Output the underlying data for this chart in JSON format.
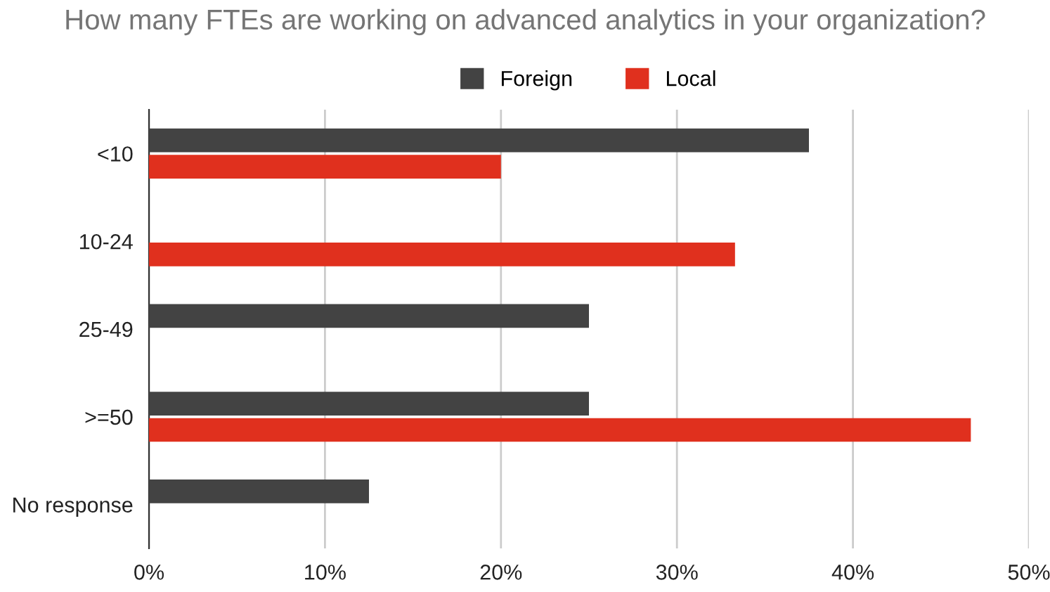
{
  "chart_data": {
    "type": "bar",
    "orientation": "horizontal",
    "title": "How many FTEs are working on advanced analytics in your organization?",
    "categories": [
      "<10",
      "10-24",
      "25-49",
      ">=50",
      "No response"
    ],
    "series": [
      {
        "name": "Foreign",
        "color": "#434343",
        "values": [
          37.5,
          0,
          25,
          25,
          12.5
        ]
      },
      {
        "name": "Local",
        "color": "#e0301e",
        "values": [
          20,
          33.3,
          0,
          46.7,
          0
        ]
      }
    ],
    "xlim": [
      0,
      50
    ],
    "xticks": [
      {
        "value": 0,
        "label": "0%"
      },
      {
        "value": 10,
        "label": "10%"
      },
      {
        "value": 20,
        "label": "20%"
      },
      {
        "value": 30,
        "label": "30%"
      },
      {
        "value": 40,
        "label": "40%"
      },
      {
        "value": 50,
        "label": "50%"
      }
    ],
    "grid": "x",
    "legend": "top"
  }
}
